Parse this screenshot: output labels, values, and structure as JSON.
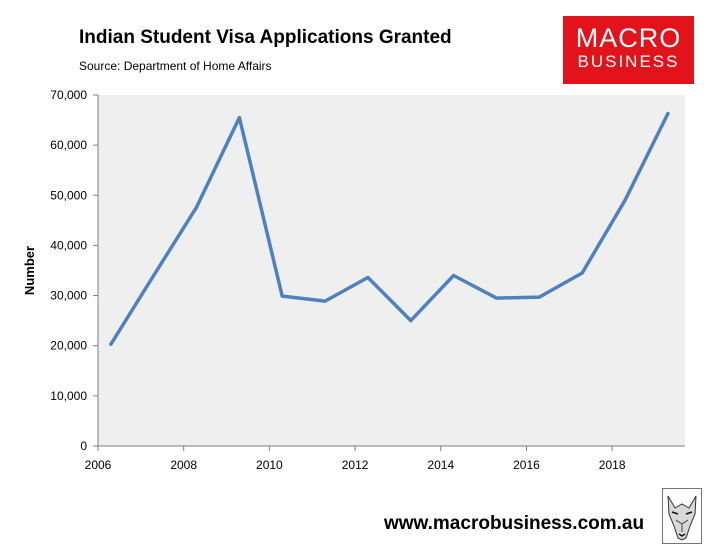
{
  "header": {
    "title": "Indian Student Visa Applications Granted",
    "subtitle": "Source: Department of Home Affairs"
  },
  "logo": {
    "line1": "MACRO",
    "line2": "BUSINESS",
    "color": "#e3131b"
  },
  "footer": {
    "url": "www.macrobusiness.com.au"
  },
  "chart_data": {
    "type": "line",
    "title": "Indian Student Visa Applications Granted",
    "subtitle": "Source: Department of Home Affairs",
    "xlabel": "",
    "ylabel": "Number",
    "xlim": [
      2006,
      2019.7
    ],
    "ylim": [
      0,
      70000
    ],
    "x_ticks": [
      "2006",
      "2008",
      "2010",
      "2012",
      "2014",
      "2016",
      "2018"
    ],
    "y_ticks": [
      "0",
      "10,000",
      "20,000",
      "30,000",
      "40,000",
      "50,000",
      "60,000",
      "70,000"
    ],
    "grid": false,
    "plot_background": "#efefef",
    "series": [
      {
        "color": "#4f81bd",
        "x": [
          2006.3,
          2007.3,
          2008.3,
          2009.3,
          2010.3,
          2011.3,
          2012.3,
          2013.3,
          2014.3,
          2015.3,
          2016.3,
          2017.3,
          2018.3,
          2019.3
        ],
        "y": [
          20300,
          34000,
          47600,
          65500,
          29900,
          28900,
          33600,
          25000,
          34000,
          29500,
          29700,
          34500,
          49000,
          66300
        ]
      }
    ]
  }
}
